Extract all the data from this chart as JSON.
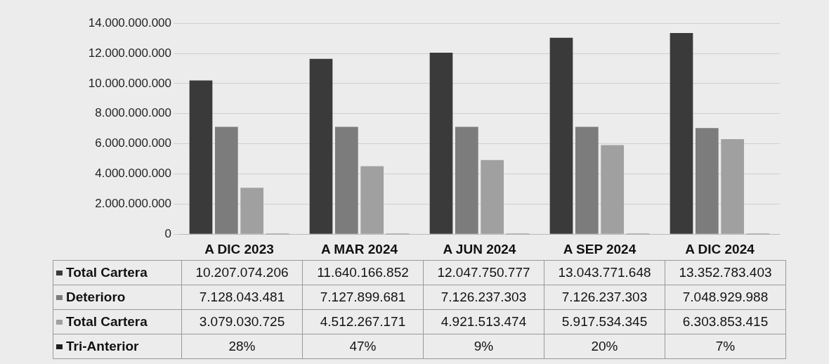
{
  "chart_data": {
    "type": "bar",
    "categories": [
      "A DIC 2023",
      "A MAR 2024",
      "A JUN 2024",
      "A SEP 2024",
      "A DIC 2024"
    ],
    "series": [
      {
        "name": "Total Cartera",
        "color": "#3a3a3a",
        "values": [
          10207074206,
          11640166852,
          12047750777,
          13043771648,
          13352783403
        ],
        "value_labels": [
          "10.207.074.206",
          "11.640.166.852",
          "12.047.750.777",
          "13.043.771.648",
          "13.352.783.403"
        ]
      },
      {
        "name": "Deterioro",
        "color": "#7c7c7c",
        "values": [
          7128043481,
          7127899681,
          7126237303,
          7126237303,
          7048929988
        ],
        "value_labels": [
          "7.128.043.481",
          "7.127.899.681",
          "7.126.237.303",
          "7.126.237.303",
          "7.048.929.988"
        ]
      },
      {
        "name": "Total Cartera",
        "color": "#a0a0a0",
        "values": [
          3079030725,
          4512267171,
          4921513474,
          5917534345,
          6303853415
        ],
        "value_labels": [
          "3.079.030.725",
          "4.512.267.171",
          "4.921.513.474",
          "5.917.534.345",
          "6.303.853.415"
        ]
      },
      {
        "name": "Tri-Anterior",
        "color": "#1e1e1e",
        "values": [
          28,
          47,
          9,
          20,
          7
        ],
        "value_labels": [
          "28%",
          "47%",
          "9%",
          "20%",
          "7%"
        ]
      }
    ],
    "ylim": [
      0,
      14000000000
    ],
    "yticks": [
      {
        "value": 0,
        "label": "0"
      },
      {
        "value": 2000000000,
        "label": "2.000.000.000"
      },
      {
        "value": 4000000000,
        "label": "4.000.000.000"
      },
      {
        "value": 6000000000,
        "label": "6.000.000.000"
      },
      {
        "value": 8000000000,
        "label": "8.000.000.000"
      },
      {
        "value": 10000000000,
        "label": "10.000.000.000"
      },
      {
        "value": 12000000000,
        "label": "12.000.000.000"
      },
      {
        "value": 14000000000,
        "label": "14.000.000.000"
      }
    ],
    "grid": "y",
    "legend": "bottom"
  }
}
